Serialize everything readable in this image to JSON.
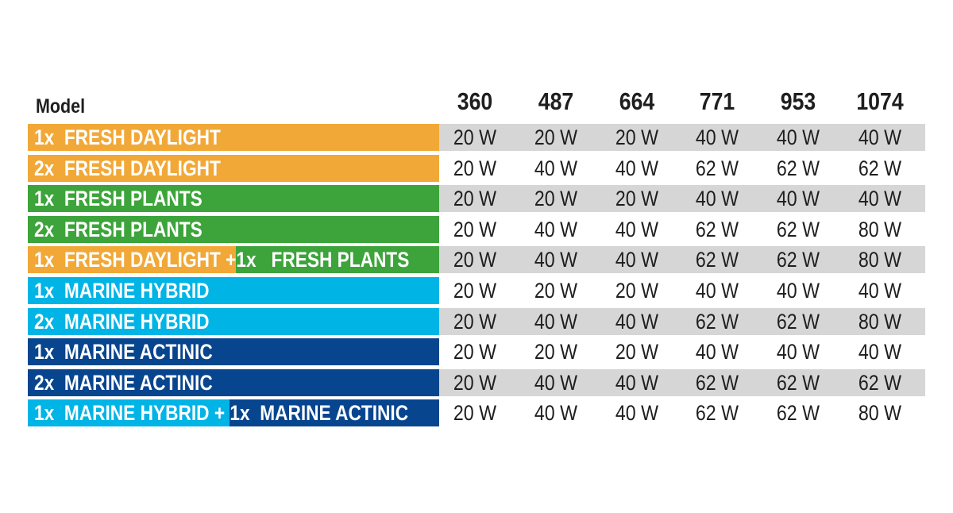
{
  "header": {
    "model_label": "Model",
    "columns": [
      "360",
      "487",
      "664",
      "771",
      "953",
      "1074"
    ]
  },
  "colors": {
    "fresh_daylight": "#f1a837",
    "fresh_plants": "#3ca43a",
    "marine_hybrid": "#00b4e6",
    "marine_actinic": "#08458f",
    "row_shade": "#d6d6d7"
  },
  "rows": [
    {
      "label": "1x  FRESH DAYLIGHT",
      "values": [
        "20 W",
        "20 W",
        "20 W",
        "40 W",
        "40 W",
        "40 W"
      ]
    },
    {
      "label": "2x  FRESH DAYLIGHT",
      "values": [
        "20 W",
        "40 W",
        "40 W",
        "62 W",
        "62 W",
        "62 W"
      ]
    },
    {
      "label": "1x  FRESH PLANTS",
      "values": [
        "20 W",
        "20 W",
        "20 W",
        "40 W",
        "40 W",
        "40 W"
      ]
    },
    {
      "label": "2x  FRESH PLANTS",
      "values": [
        "20 W",
        "40 W",
        "40 W",
        "62 W",
        "62 W",
        "80 W"
      ]
    },
    {
      "label_a": "1x  FRESH DAYLIGHT +",
      "label_b": "1x   FRESH PLANTS",
      "values": [
        "20 W",
        "40 W",
        "40 W",
        "62 W",
        "62 W",
        "80 W"
      ]
    },
    {
      "label": "1x  MARINE HYBRID",
      "values": [
        "20 W",
        "20 W",
        "20 W",
        "40 W",
        "40 W",
        "40 W"
      ]
    },
    {
      "label": "2x  MARINE HYBRID",
      "values": [
        "20 W",
        "40 W",
        "40 W",
        "62 W",
        "62 W",
        "80 W"
      ]
    },
    {
      "label": "1x  MARINE ACTINIC",
      "values": [
        "20 W",
        "20 W",
        "20 W",
        "40 W",
        "40 W",
        "40 W"
      ]
    },
    {
      "label": "2x  MARINE ACTINIC",
      "values": [
        "20 W",
        "40 W",
        "40 W",
        "62 W",
        "62 W",
        "62 W"
      ]
    },
    {
      "label_a": "1x  MARINE HYBRID +",
      "label_b": " 1x  MARINE ACTINIC",
      "values": [
        "20 W",
        "40 W",
        "40 W",
        "62 W",
        "62 W",
        "80 W"
      ]
    }
  ]
}
